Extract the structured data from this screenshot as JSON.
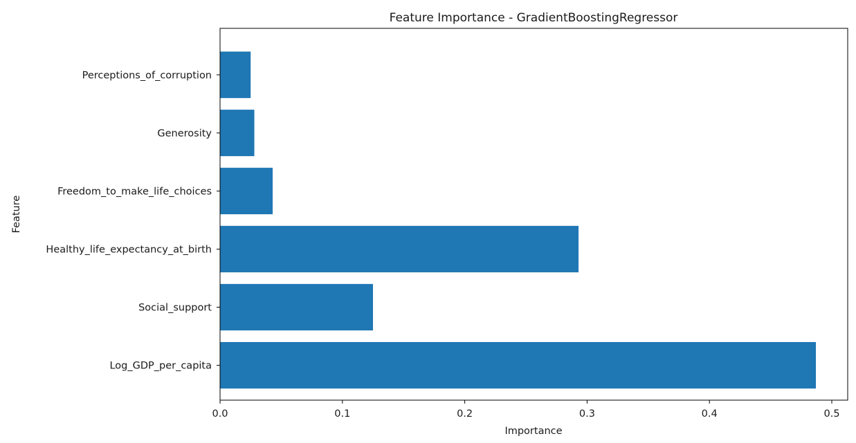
{
  "chart_data": {
    "type": "bar",
    "orientation": "horizontal",
    "title": "Feature Importance - GradientBoostingRegressor",
    "xlabel": "Importance",
    "ylabel": "Feature",
    "categories": [
      "Log_GDP_per_capita",
      "Social_support",
      "Healthy_life_expectancy_at_birth",
      "Freedom_to_make_life_choices",
      "Generosity",
      "Perceptions_of_corruption"
    ],
    "values": [
      0.487,
      0.125,
      0.293,
      0.043,
      0.028,
      0.025
    ],
    "xlim": [
      0,
      0.513
    ],
    "xticks": [
      0.0,
      0.1,
      0.2,
      0.3,
      0.4,
      0.5
    ],
    "xtick_labels": [
      "0.0",
      "0.1",
      "0.2",
      "0.3",
      "0.4",
      "0.5"
    ],
    "grid": false,
    "legend": "none",
    "colors": {
      "bar": "#1f77b4",
      "axes": "#000000",
      "text": "#1a1a1a"
    }
  }
}
